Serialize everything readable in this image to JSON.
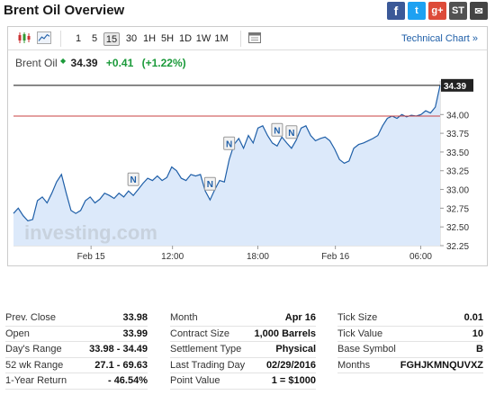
{
  "page_title": "Brent Oil Overview",
  "share": {
    "facebook": "f",
    "twitter": "t",
    "google": "g+",
    "stocktwits": "ST",
    "email": "✉"
  },
  "toolbar": {
    "timeframes": [
      "1",
      "5",
      "15",
      "30",
      "1H",
      "5H",
      "1D",
      "1W",
      "1M"
    ],
    "active_timeframe": "15",
    "technical_chart_link": "Technical Chart »"
  },
  "quote": {
    "name": "Brent Oil",
    "price": "34.39",
    "change": "+0.41",
    "change_pct": "(+1.22%)"
  },
  "chart": {
    "watermark": "investing.com",
    "last_price_label": "34.39",
    "prev_close": 33.98,
    "y_ticks": [
      "34.00",
      "33.75",
      "33.50",
      "33.25",
      "33.00",
      "32.75",
      "32.50",
      "32.25"
    ],
    "x_ticks": [
      "Feb 15",
      "12:00",
      "18:00",
      "Feb 16",
      "06:00"
    ],
    "news_marker": "N",
    "colors": {
      "line": "#1f5fa8",
      "fill": "#dce9fa",
      "prev_close_line": "#c94040",
      "last_price_bg": "#222222"
    }
  },
  "chart_data": {
    "type": "area",
    "title": "Brent Oil",
    "ylim": [
      32.25,
      34.4
    ],
    "x_ticks": [
      "Feb 15",
      "12:00",
      "18:00",
      "Feb 16",
      "06:00"
    ],
    "series": [
      {
        "name": "Brent Oil",
        "values": [
          32.68,
          32.75,
          32.65,
          32.58,
          32.6,
          32.85,
          32.9,
          32.82,
          32.95,
          33.1,
          33.2,
          32.95,
          32.72,
          32.68,
          32.72,
          32.85,
          32.9,
          32.82,
          32.87,
          32.95,
          32.92,
          32.88,
          32.95,
          32.9,
          32.98,
          32.92,
          33.0,
          33.08,
          33.15,
          33.12,
          33.18,
          33.12,
          33.16,
          33.3,
          33.25,
          33.15,
          33.12,
          33.2,
          33.18,
          33.2,
          32.98,
          32.86,
          33.0,
          33.12,
          33.1,
          33.4,
          33.6,
          33.68,
          33.55,
          33.72,
          33.62,
          33.82,
          33.85,
          33.72,
          33.62,
          33.58,
          33.7,
          33.62,
          33.55,
          33.66,
          33.82,
          33.85,
          33.72,
          33.65,
          33.68,
          33.7,
          33.65,
          33.54,
          33.4,
          33.35,
          33.38,
          33.55,
          33.6,
          33.62,
          33.65,
          33.68,
          33.72,
          33.85,
          33.95,
          33.98,
          33.95,
          34.0,
          33.97,
          33.99,
          33.98,
          34.0,
          34.05,
          34.02,
          34.1,
          34.39
        ]
      }
    ],
    "annotations": [
      "N",
      "N",
      "N",
      "N",
      "N"
    ]
  },
  "stats": {
    "col1": [
      {
        "label": "Prev. Close",
        "value": "33.98"
      },
      {
        "label": "Open",
        "value": "33.99"
      },
      {
        "label": "Day's Range",
        "value": "33.98 - 34.49"
      },
      {
        "label": "52 wk Range",
        "value": "27.1 - 69.63"
      },
      {
        "label": "1-Year Return",
        "value": "- 46.54%"
      }
    ],
    "col2": [
      {
        "label": "Month",
        "value": "Apr 16"
      },
      {
        "label": "Contract Size",
        "value": "1,000 Barrels"
      },
      {
        "label": "Settlement Type",
        "value": "Physical"
      },
      {
        "label": "Last Trading Day",
        "value": "02/29/2016"
      },
      {
        "label": "Point Value",
        "value": "1 = $1000"
      }
    ],
    "col3": [
      {
        "label": "Tick Size",
        "value": "0.01"
      },
      {
        "label": "Tick Value",
        "value": "10"
      },
      {
        "label": "Base Symbol",
        "value": "B"
      },
      {
        "label": "Months",
        "value": "FGHJKMNQUVXZ"
      }
    ]
  }
}
